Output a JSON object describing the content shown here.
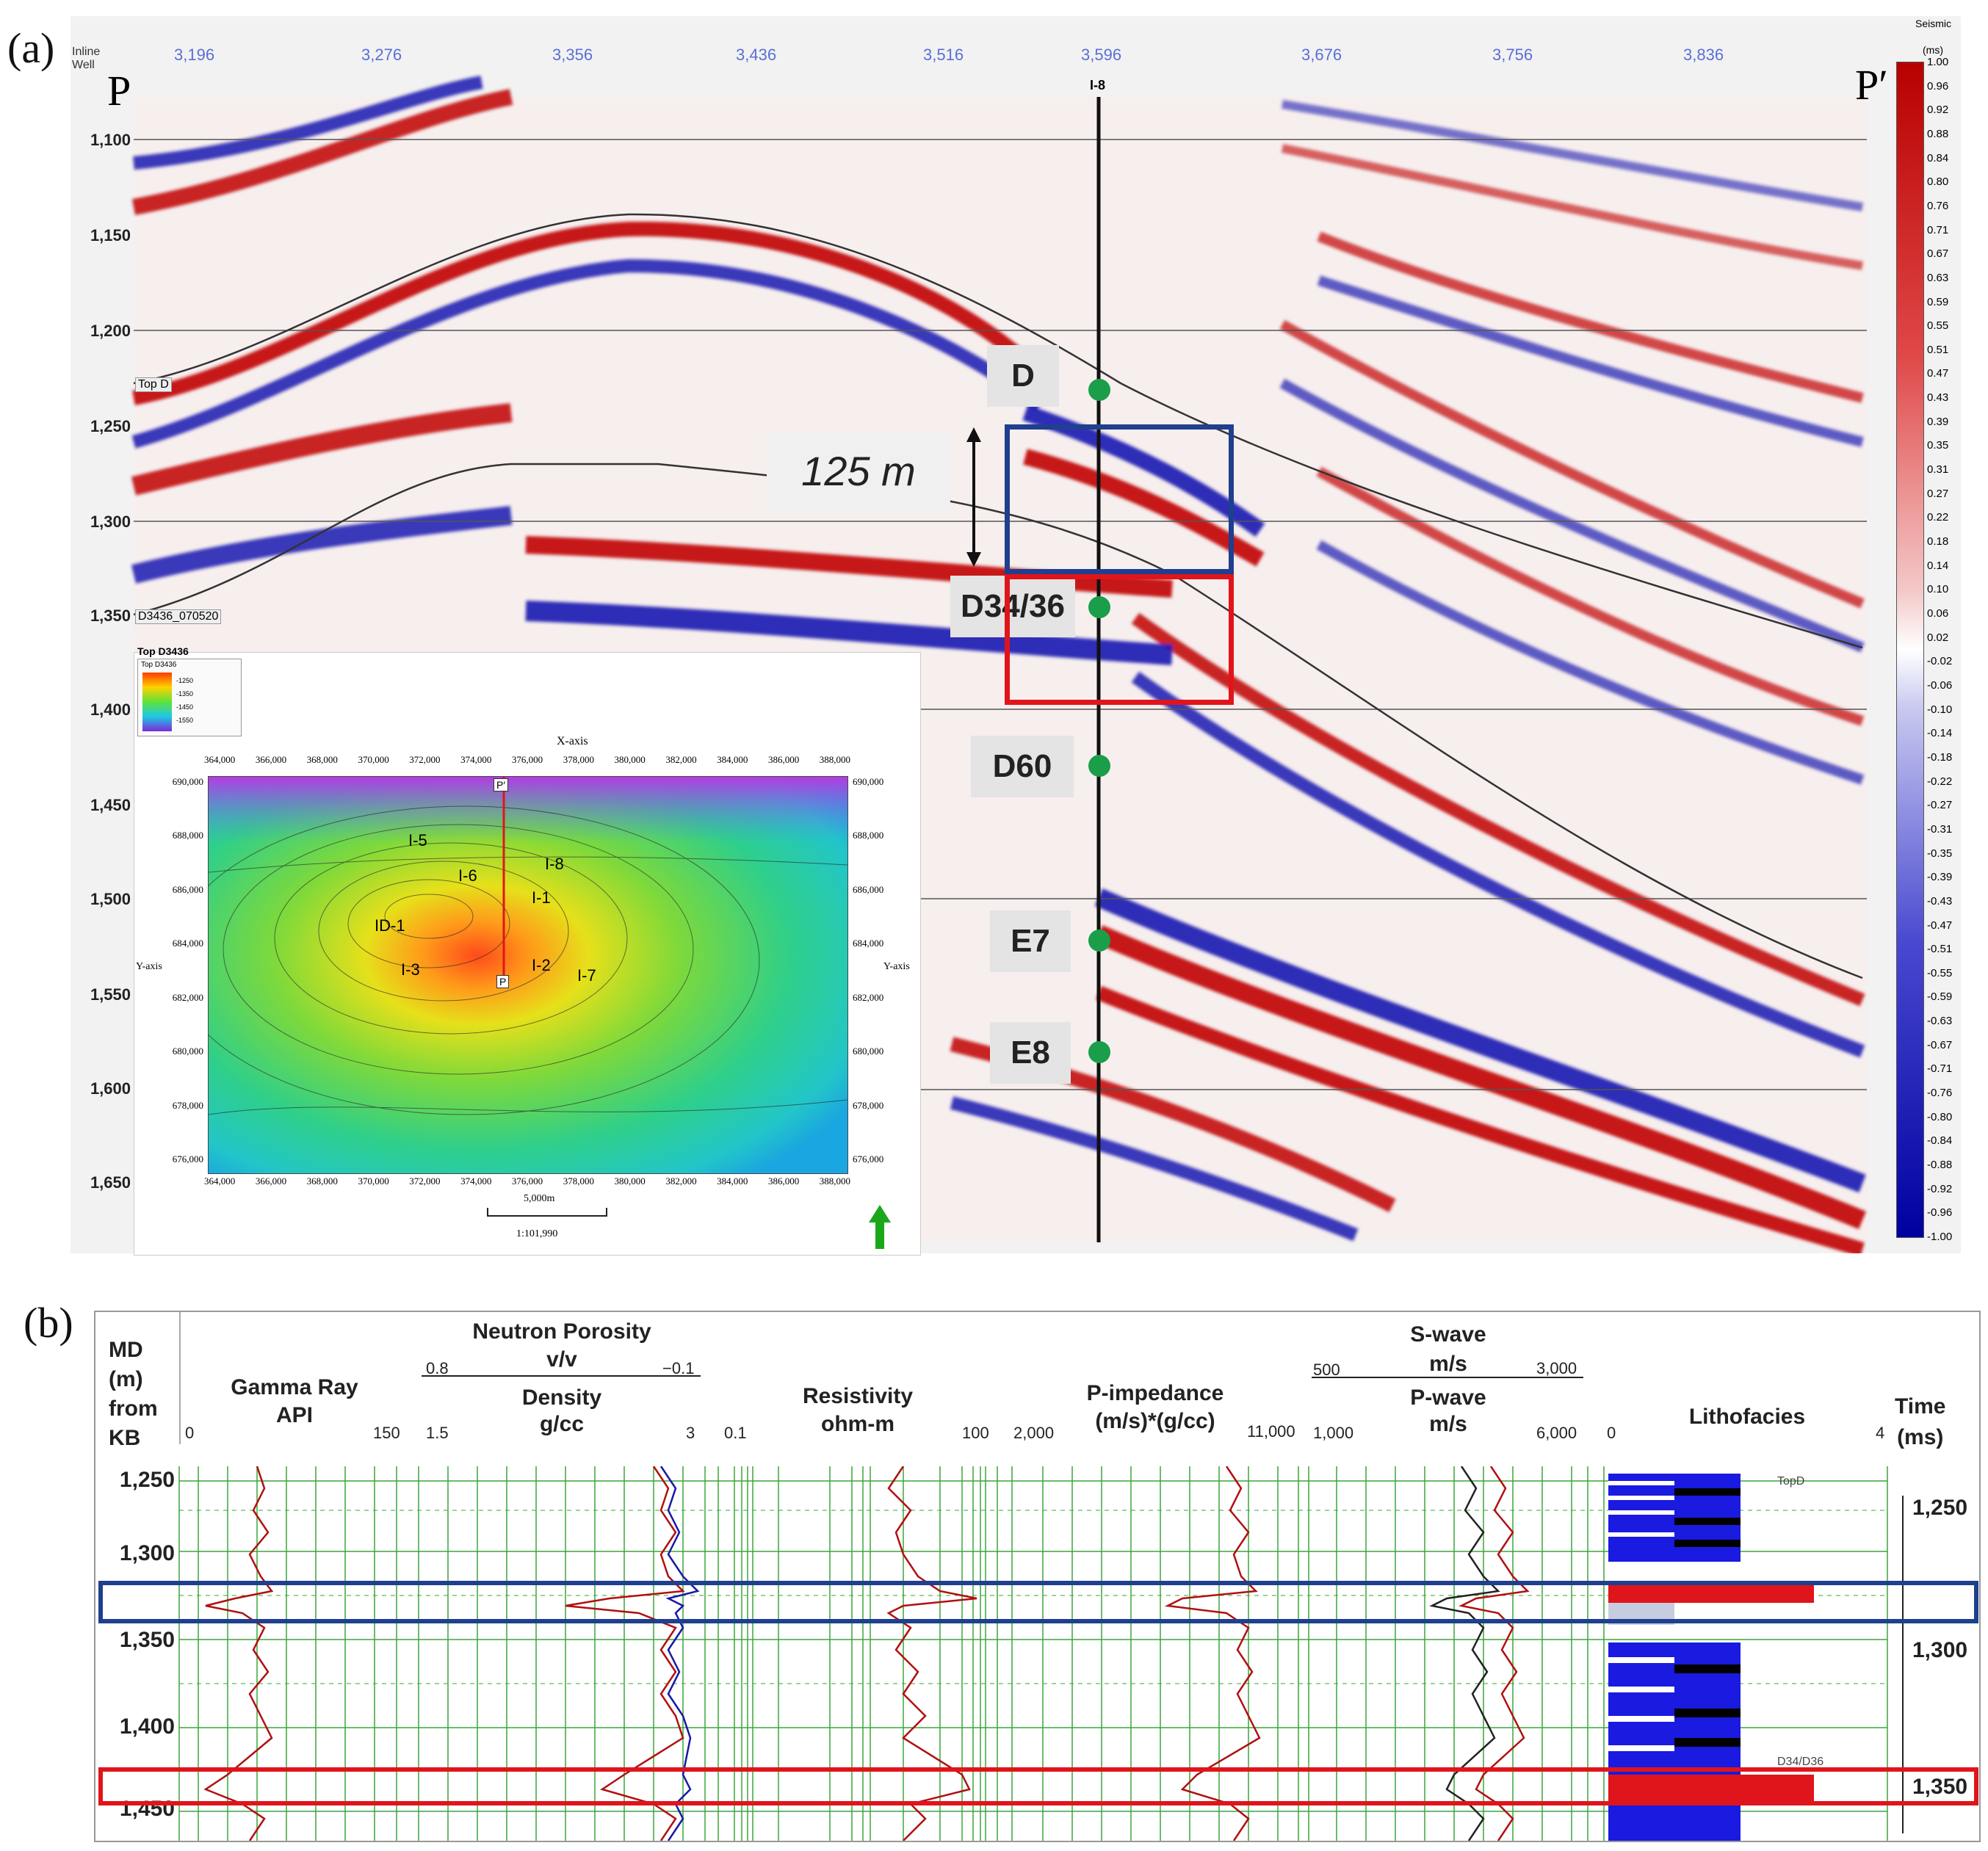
{
  "panel_a": {
    "label": "(a)",
    "inline_label": "Inline",
    "well_label": "Well",
    "inline_ticks": [
      "3,196",
      "3,276",
      "3,356",
      "3,436",
      "3,516",
      "3,596",
      "3,676",
      "3,756",
      "3,836"
    ],
    "well_name": "I-8",
    "p_start": "P",
    "p_end": "P′",
    "depth_ticks": [
      "1,100",
      "1,150",
      "1,200",
      "1,250",
      "1,300",
      "1,350",
      "1,400",
      "1,450",
      "1,500",
      "1,550",
      "1,600",
      "1,650"
    ],
    "horizons": [
      "D",
      "D34/36",
      "D60",
      "E7",
      "E8"
    ],
    "horizon_labels": {
      "top_d": "Top D",
      "d3436": "D3436_070520",
      "top_d3436": "Top D3436"
    },
    "thickness": "125 m",
    "colorbar": {
      "title": "Seismic",
      "unit": "(ms)",
      "ticks": [
        "1.00",
        "0.96",
        "0.92",
        "0.88",
        "0.84",
        "0.80",
        "0.76",
        "0.71",
        "0.67",
        "0.63",
        "0.59",
        "0.55",
        "0.51",
        "0.47",
        "0.43",
        "0.39",
        "0.35",
        "0.31",
        "0.27",
        "0.22",
        "0.18",
        "0.14",
        "0.10",
        "0.06",
        "0.02",
        "-0.02",
        "-0.06",
        "-0.10",
        "-0.14",
        "-0.18",
        "-0.22",
        "-0.27",
        "-0.31",
        "-0.35",
        "-0.39",
        "-0.43",
        "-0.47",
        "-0.51",
        "-0.55",
        "-0.59",
        "-0.63",
        "-0.67",
        "-0.71",
        "-0.76",
        "-0.80",
        "-0.84",
        "-0.88",
        "-0.92",
        "-0.96",
        "-1.00"
      ]
    },
    "map": {
      "x_axis_label": "X-axis",
      "y_axis_label": "Y-axis",
      "x_ticks": [
        "364,000",
        "366,000",
        "368,000",
        "370,000",
        "372,000",
        "374,000",
        "376,000",
        "378,000",
        "380,000",
        "382,000",
        "384,000",
        "386,000",
        "388,000"
      ],
      "y_ticks": [
        "690,000",
        "688,000",
        "686,000",
        "684,000",
        "682,000",
        "680,000",
        "678,000",
        "676,000"
      ],
      "wells": [
        "I-5",
        "I-6",
        "I-8",
        "I-1",
        "ID-1",
        "I-3",
        "I-2",
        "I-7"
      ],
      "p_label": "P",
      "p_prime_label": "P′",
      "scale_label": "5,000m",
      "scale_ratio": "1:101,990",
      "legend_title": "Top D3436",
      "legend_ticks": [
        "-1250",
        "-1350",
        "-1450",
        "-1550"
      ]
    },
    "colors": {
      "positive": "#c00000",
      "negative": "#1a1ab0",
      "well": "#111111",
      "marker": "#1a9e4a",
      "box_blue": "#1f3f8f",
      "box_red": "#e0151b"
    }
  },
  "panel_b": {
    "label": "(b)",
    "md_header": [
      "MD",
      "(m)",
      "from",
      "KB"
    ],
    "time_header": [
      "Time",
      "(ms)"
    ],
    "tracks": [
      {
        "title": "Gamma Ray",
        "unit": "API",
        "min": "0",
        "max": "150"
      },
      {
        "title": "Neutron Porosity",
        "unit": "v/v",
        "min": "0.8",
        "max": "−0.1",
        "title2": "Density",
        "unit2": "g/cc",
        "min2": "1.5",
        "max2": "3"
      },
      {
        "title": "Resistivity",
        "unit": "ohm-m",
        "min": "0.1",
        "max": "100"
      },
      {
        "title": "P-impedance",
        "unit": "(m/s)*(g/cc)",
        "min": "2,000",
        "max": "11,000"
      },
      {
        "title": "S-wave",
        "unit": "m/s",
        "min": "500",
        "max": "3,000",
        "title2": "P-wave",
        "unit2": "m/s",
        "min2": "1,000",
        "max2": "6,000"
      },
      {
        "title": "Lithofacies",
        "min": "0",
        "max": "4"
      }
    ],
    "md_ticks": [
      "1,250",
      "1,300",
      "1,350",
      "1,400",
      "1,450"
    ],
    "time_ticks": [
      "1,250",
      "1,300",
      "1,350"
    ],
    "litho_markers": [
      "TopD",
      "D34/D36"
    ]
  }
}
